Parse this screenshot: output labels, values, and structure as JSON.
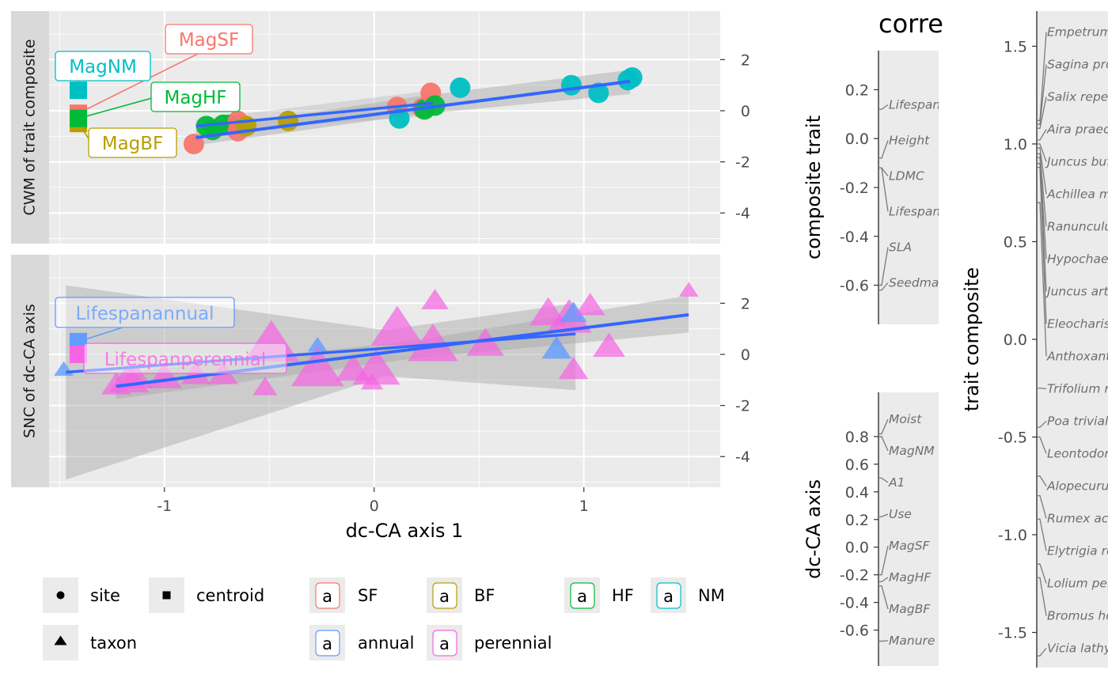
{
  "chart_data": [
    {
      "type": "scatter",
      "panel": "CWM of trait composite",
      "xlabel": "dc-CA axis 1",
      "xlim": [
        -1.55,
        1.65
      ],
      "ylim": [
        -5.2,
        3.9
      ],
      "x_ticks": [
        -1,
        0,
        1
      ],
      "y_ticks": [
        2,
        0,
        -2,
        -4
      ],
      "sites": [
        {
          "x": -0.86,
          "y": -1.3,
          "g": "SF"
        },
        {
          "x": -0.8,
          "y": -0.6,
          "g": "HF"
        },
        {
          "x": -0.77,
          "y": -0.75,
          "g": "HF"
        },
        {
          "x": -0.72,
          "y": -0.55,
          "g": "HF"
        },
        {
          "x": -0.69,
          "y": -0.55,
          "g": "HF"
        },
        {
          "x": -0.65,
          "y": -0.4,
          "g": "SF"
        },
        {
          "x": -0.65,
          "y": -0.8,
          "g": "SF"
        },
        {
          "x": -0.61,
          "y": -0.6,
          "g": "BF"
        },
        {
          "x": -0.41,
          "y": -0.4,
          "g": "BF"
        },
        {
          "x": 0.11,
          "y": 0.15,
          "g": "SF"
        },
        {
          "x": 0.12,
          "y": -0.3,
          "g": "NM"
        },
        {
          "x": 0.23,
          "y": 0.1,
          "g": "SF"
        },
        {
          "x": 0.24,
          "y": 0.05,
          "g": "HF"
        },
        {
          "x": 0.27,
          "y": 0.7,
          "g": "SF"
        },
        {
          "x": 0.29,
          "y": 0.2,
          "g": "HF"
        },
        {
          "x": 0.41,
          "y": 0.9,
          "g": "NM"
        },
        {
          "x": 0.94,
          "y": 1.0,
          "g": "NM"
        },
        {
          "x": 1.07,
          "y": 0.7,
          "g": "NM"
        },
        {
          "x": 1.21,
          "y": 1.2,
          "g": "NM"
        },
        {
          "x": 1.23,
          "y": 1.3,
          "g": "NM"
        }
      ],
      "centroids": [
        {
          "y": 0.8,
          "g": "NM"
        },
        {
          "y": -0.1,
          "g": "SF"
        },
        {
          "y": -0.5,
          "g": "BF"
        },
        {
          "y": -0.3,
          "g": "HF"
        }
      ],
      "labels": [
        {
          "text": "MagSF",
          "g": "SF"
        },
        {
          "text": "MagNM",
          "g": "NM"
        },
        {
          "text": "MagHF",
          "g": "HF"
        },
        {
          "text": "MagBF",
          "g": "BF"
        }
      ],
      "fit": {
        "x0": -0.85,
        "x1": 1.22,
        "y0": -1.05,
        "y1": 1.15
      },
      "fit_band": [
        [
          -0.85,
          -0.75,
          -1.35
        ],
        [
          0.2,
          0.55,
          -0.15
        ],
        [
          1.22,
          1.6,
          0.65
        ]
      ],
      "centroid_fit": {
        "x0": -0.85,
        "x1": 0.28,
        "y0": -0.6,
        "y1": 0.3
      }
    },
    {
      "type": "scatter",
      "panel": "SNC of dc-CA axis",
      "xlim": [
        -1.55,
        1.65
      ],
      "ylim": [
        -5.2,
        3.9
      ],
      "y_ticks": [
        2,
        0,
        -2,
        -4
      ],
      "taxa": [
        {
          "x": -1.23,
          "y": -1.2,
          "s": 0.6,
          "g": "perennial"
        },
        {
          "x": -1.17,
          "y": -1.0,
          "s": 1.0,
          "g": "perennial"
        },
        {
          "x": -1.14,
          "y": -0.9,
          "s": 0.8,
          "g": "perennial"
        },
        {
          "x": -1.0,
          "y": -0.9,
          "s": 0.8,
          "g": "perennial"
        },
        {
          "x": -0.85,
          "y": -0.8,
          "s": 0.6,
          "g": "perennial"
        },
        {
          "x": -0.72,
          "y": -0.8,
          "s": 0.6,
          "g": "perennial"
        },
        {
          "x": -0.52,
          "y": -1.3,
          "s": 0.4,
          "g": "perennial"
        },
        {
          "x": -0.49,
          "y": 0.4,
          "s": 1.6,
          "g": "perennial"
        },
        {
          "x": -0.27,
          "y": 0.35,
          "s": 0.2,
          "g": "annual"
        },
        {
          "x": -0.27,
          "y": -0.6,
          "s": 1.5,
          "g": "perennial"
        },
        {
          "x": -0.1,
          "y": -0.6,
          "s": 0.8,
          "g": "perennial"
        },
        {
          "x": 0.01,
          "y": -0.6,
          "s": 1.3,
          "g": "perennial"
        },
        {
          "x": -0.01,
          "y": -1.1,
          "s": 0.3,
          "g": "perennial"
        },
        {
          "x": 0.11,
          "y": 1.0,
          "s": 1.5,
          "g": "perennial"
        },
        {
          "x": 0.28,
          "y": 0.35,
          "s": 1.4,
          "g": "perennial"
        },
        {
          "x": 0.29,
          "y": 2.1,
          "s": 0.5,
          "g": "perennial"
        },
        {
          "x": 0.53,
          "y": 0.4,
          "s": 0.9,
          "g": "perennial"
        },
        {
          "x": 0.83,
          "y": 1.6,
          "s": 0.9,
          "g": "perennial"
        },
        {
          "x": 0.87,
          "y": 0.2,
          "s": 0.6,
          "g": "annual"
        },
        {
          "x": 0.93,
          "y": 1.4,
          "s": 1.2,
          "g": "perennial"
        },
        {
          "x": 0.95,
          "y": 1.6,
          "s": 0.5,
          "g": "annual"
        },
        {
          "x": 0.95,
          "y": -0.6,
          "s": 0.6,
          "g": "perennial"
        },
        {
          "x": 1.03,
          "y": 1.9,
          "s": 0.6,
          "g": "perennial"
        },
        {
          "x": 1.12,
          "y": 0.3,
          "s": 0.7,
          "g": "perennial"
        },
        {
          "x": 1.5,
          "y": 2.5,
          "s": 0.2,
          "g": "perennial"
        },
        {
          "x": -1.48,
          "y": -0.6,
          "s": 0.2,
          "g": "annual"
        }
      ],
      "centroids": [
        {
          "y": 0.5,
          "g": "annual"
        },
        {
          "y": 0.0,
          "g": "perennial"
        }
      ],
      "labels": [
        {
          "text": "Lifespanannual",
          "g": "annual"
        },
        {
          "text": "Lifespanperennial",
          "g": "perennial"
        }
      ],
      "fit": {
        "x0": -1.23,
        "x1": 1.5,
        "y0": -1.25,
        "y1": 1.55
      },
      "fit_band": [
        [
          -1.23,
          -0.75,
          -1.75
        ],
        [
          0.2,
          0.55,
          -0.15
        ],
        [
          1.5,
          2.3,
          0.85
        ]
      ],
      "centroid_fit": {
        "x0": -1.47,
        "x1": 0.96,
        "y0": -0.7,
        "y1": 0.8
      },
      "centroid_band": [
        [
          -1.47,
          2.7,
          -4.9
        ],
        [
          0.05,
          0.95,
          -0.85
        ],
        [
          0.96,
          2.0,
          -1.4
        ]
      ]
    },
    {
      "type": "scatter",
      "panel": "correlation composite trait",
      "ylabel": "composite trait",
      "ylim": [
        -0.76,
        0.36
      ],
      "y_ticks": [
        0.2,
        0.0,
        -0.2,
        -0.4,
        -0.6
      ],
      "traits": [
        {
          "name": "Lifespanperennial",
          "v": 0.12
        },
        {
          "name": "Height",
          "v": -0.08
        },
        {
          "name": "LDMC",
          "v": -0.12
        },
        {
          "name": "Lifespanannual",
          "v": -0.12
        },
        {
          "name": "SLA",
          "v": -0.6
        },
        {
          "name": "Seedmass",
          "v": -0.62
        }
      ]
    },
    {
      "type": "scatter",
      "panel": "correlation dc-CA axis",
      "ylabel": "dc-CA axis",
      "ylim": [
        -0.86,
        1.12
      ],
      "y_ticks": [
        0.8,
        0.6,
        0.4,
        0.2,
        0.0,
        -0.2,
        -0.4,
        -0.6
      ],
      "env": [
        {
          "name": "Moist",
          "v": 0.82
        },
        {
          "name": "MagNM",
          "v": 0.8
        },
        {
          "name": "A1",
          "v": 0.5
        },
        {
          "name": "Use",
          "v": 0.22
        },
        {
          "name": "MagSF",
          "v": -0.2
        },
        {
          "name": "MagHF",
          "v": -0.25
        },
        {
          "name": "MagBF",
          "v": -0.28
        },
        {
          "name": "Manure",
          "v": -0.68
        }
      ]
    },
    {
      "type": "scatter",
      "panel": "trait composite species",
      "ylabel": "trait composite",
      "ylim": [
        -1.68,
        1.68
      ],
      "y_ticks": [
        1.5,
        1.0,
        0.5,
        0.0,
        -0.5,
        -1.0,
        -1.5
      ],
      "species": [
        {
          "name": "Empetrum nigrum",
          "v": 1.12
        },
        {
          "name": "Sagina procumbens",
          "v": 1.1
        },
        {
          "name": "Salix repens",
          "v": 1.08
        },
        {
          "name": "Aira praecox",
          "v": 1.02
        },
        {
          "name": "Juncus bufonius",
          "v": 1.0
        },
        {
          "name": "Achillea millefolium",
          "v": 0.98
        },
        {
          "name": "Ranunculus flammula",
          "v": 0.95
        },
        {
          "name": "Hypochaeris radicata",
          "v": 0.93
        },
        {
          "name": "Juncus articulatus",
          "v": 0.9
        },
        {
          "name": "Eleocharis palustris",
          "v": 0.88
        },
        {
          "name": "Anthoxanthum odoratum",
          "v": 0.7
        },
        {
          "name": "Trifolium repens",
          "v": -0.25
        },
        {
          "name": "Poa trivialis",
          "v": -0.45
        },
        {
          "name": "Leontodon autumnalis",
          "v": -0.5
        },
        {
          "name": "Alopecurus geniculatus",
          "v": -0.7
        },
        {
          "name": "Rumex acetosa",
          "v": -0.8
        },
        {
          "name": "Elytrigia repens",
          "v": -0.92
        },
        {
          "name": "Lolium perenne",
          "v": -1.15
        },
        {
          "name": "Bromus hordeaceus",
          "v": -1.22
        },
        {
          "name": "Vicia lathyroides",
          "v": -1.62
        }
      ]
    }
  ],
  "strips": [
    "CWM of trait composite",
    "SNC of dc-CA axis"
  ],
  "title_fragment": "corre",
  "colors": {
    "SF": "#F8766D",
    "BF": "#B79F00",
    "HF": "#00BA38",
    "NM": "#00BFC4",
    "annual": "#619CFF",
    "perennial": "#F564E3",
    "fit": "#3366FF"
  },
  "legend": {
    "shapes": [
      {
        "label": "site",
        "shape": "circle"
      },
      {
        "label": "centroid",
        "shape": "square"
      },
      {
        "label": "taxon",
        "shape": "triangle"
      }
    ],
    "groups": [
      {
        "label": "SF",
        "key": "SF"
      },
      {
        "label": "BF",
        "key": "BF"
      },
      {
        "label": "HF",
        "key": "HF"
      },
      {
        "label": "NM",
        "key": "NM"
      },
      {
        "label": "annual",
        "key": "annual"
      },
      {
        "label": "perennial",
        "key": "perennial"
      }
    ],
    "key_glyph": "a"
  }
}
